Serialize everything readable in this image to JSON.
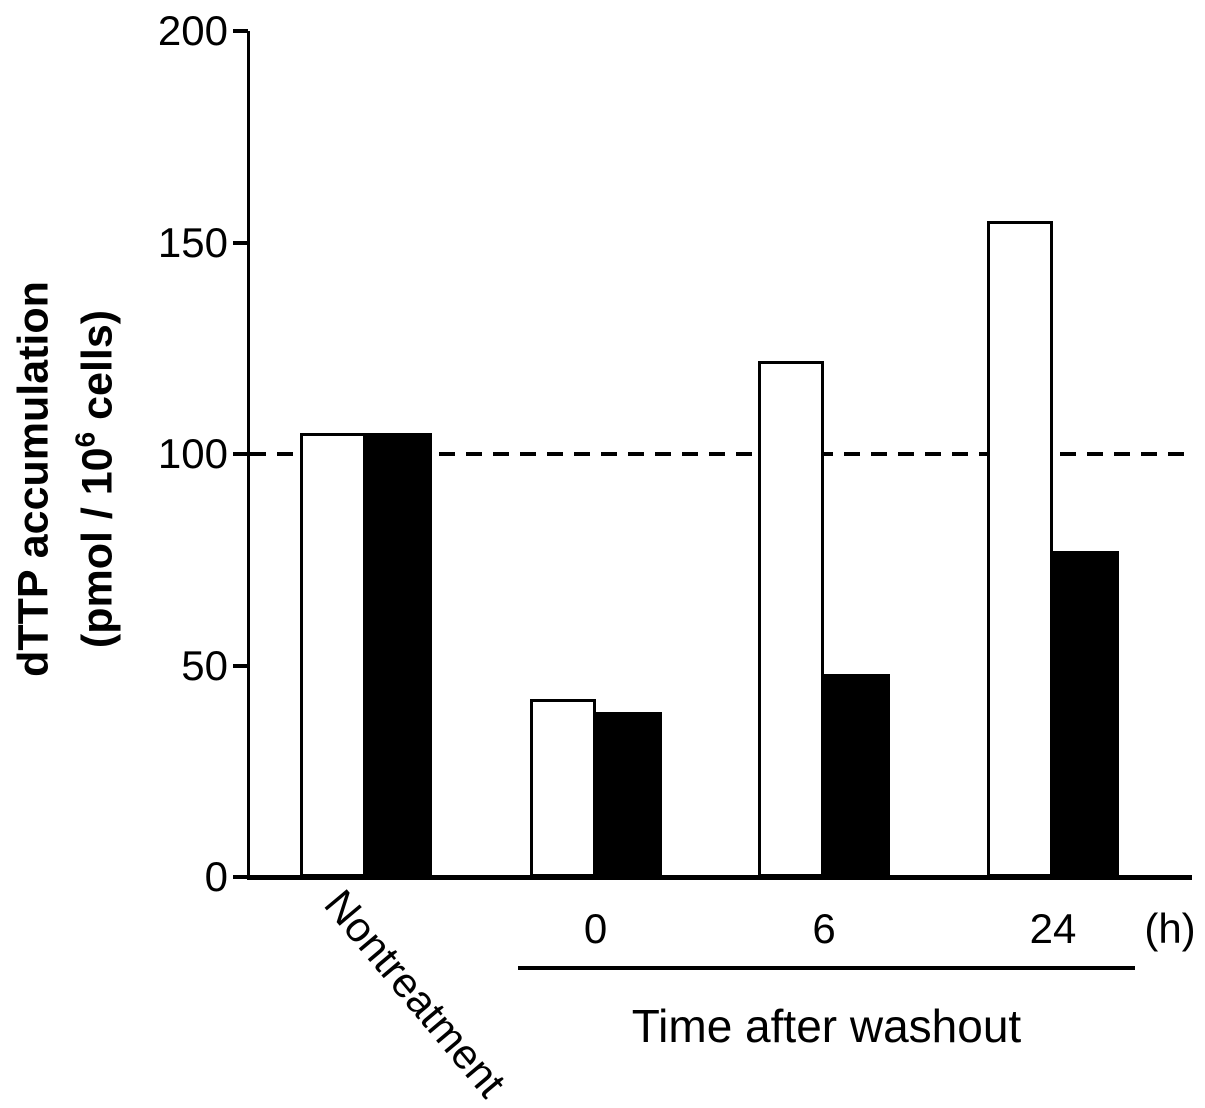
{
  "chart_data": {
    "type": "bar",
    "title": "",
    "categories": [
      "Nontreatment",
      "0",
      "6",
      "24"
    ],
    "series": [
      {
        "name": "open-bars",
        "fill": "#ffffff",
        "values": [
          105,
          42,
          122,
          155
        ]
      },
      {
        "name": "filled-bars",
        "fill": "#000000",
        "values": [
          105,
          39,
          48,
          77
        ]
      }
    ],
    "ylabel_line1": "dTTP accumulation",
    "ylabel_line2_prefix": "(pmol / 10",
    "ylabel_line2_sup": "6",
    "ylabel_line2_suffix": " cells)",
    "xlabel": "Time after washout",
    "x_unit": "(h)",
    "ylim": [
      0,
      200
    ],
    "yticks": [
      0,
      50,
      100,
      150,
      200
    ],
    "reference_line": 100,
    "reference_line_style": "dashed",
    "grid": false,
    "legend": "none",
    "colors": {
      "axis": "#000000",
      "background": "#ffffff"
    }
  }
}
